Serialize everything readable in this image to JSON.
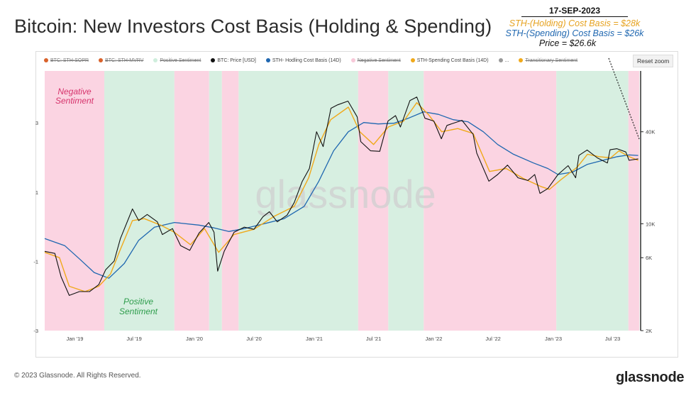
{
  "title": "Bitcoin: New Investors Cost Basis (Holding & Spending)",
  "annotation": {
    "date": "17-SEP-2023",
    "holding": "STH-(Holding) Cost Basis = $28k",
    "spending": "STH-(Spending) Cost Basis = $26k",
    "price": "Price = $26.6k"
  },
  "legend": [
    {
      "label": "BTC: STH-SOPR",
      "color": "#d9622b",
      "struck": true
    },
    {
      "label": "BTC: STH-MVRV",
      "color": "#d9622b",
      "struck": true
    },
    {
      "label": "Positive Sentiment",
      "color": "#cfeedd",
      "struck": true
    },
    {
      "label": "BTC: Price [USD]",
      "color": "#111111",
      "struck": false
    },
    {
      "label": "STH- Hodling Cost Basis (14D)",
      "color": "#1f67b0",
      "struck": false
    },
    {
      "label": "Negative Sentiment",
      "color": "#f7c9d9",
      "struck": true
    },
    {
      "label": "STH-Spending Cost Basis (14D)",
      "color": "#f0a91a",
      "struck": false
    },
    {
      "label": "...",
      "color": "#999999",
      "struck": false
    },
    {
      "label": "Transitionary Sentiment",
      "color": "#f0a91a",
      "struck": true
    }
  ],
  "reset_zoom": "Reset zoom",
  "zone_labels": {
    "negative": [
      "Negative",
      "Sentiment"
    ],
    "positive": [
      "Positive",
      "Sentiment"
    ]
  },
  "watermark": "glassnode",
  "footer": "© 2023 Glassnode. All Rights Reserved.",
  "brand": "glassnode",
  "colors": {
    "negative_zone": "#fbd4e2",
    "positive_zone": "#d7efe1",
    "price": "#111111",
    "holding": "#1f67b0",
    "spending": "#f0a91a",
    "transition": "#e0562c"
  },
  "chart_data": {
    "type": "line",
    "x_axis": {
      "ticks": [
        "Jan '19",
        "Jul '19",
        "Jan '20",
        "Jul '20",
        "Jan '21",
        "Jul '21",
        "Jan '22",
        "Jul '22",
        "Jan '23",
        "Jul '23"
      ],
      "tick_dates": [
        "2019-01-01",
        "2019-07-01",
        "2020-01-01",
        "2020-07-01",
        "2021-01-01",
        "2021-07-01",
        "2022-01-01",
        "2022-07-01",
        "2023-01-01",
        "2023-07-01"
      ],
      "range": [
        "2018-10-01",
        "2023-09-20"
      ]
    },
    "y_left": {
      "ticks": [
        "3",
        "1",
        "-1",
        "-3"
      ],
      "tick_values": [
        3,
        1,
        -1,
        -3
      ],
      "range": [
        -3,
        4.5
      ]
    },
    "y_right": {
      "scale": "log",
      "ticks": [
        "40K",
        "10K",
        "6K",
        "2K"
      ],
      "tick_values": [
        40000,
        10000,
        6000,
        2000
      ],
      "range": [
        2000,
        100000
      ]
    },
    "zones": [
      {
        "sentiment": "negative",
        "start": "2018-10-01",
        "end": "2019-04-01"
      },
      {
        "sentiment": "positive",
        "start": "2019-04-01",
        "end": "2019-11-01"
      },
      {
        "sentiment": "negative",
        "start": "2019-11-01",
        "end": "2020-02-15"
      },
      {
        "sentiment": "positive",
        "start": "2020-02-15",
        "end": "2020-03-25"
      },
      {
        "sentiment": "negative",
        "start": "2020-03-25",
        "end": "2020-05-15"
      },
      {
        "sentiment": "positive",
        "start": "2020-05-15",
        "end": "2021-05-15"
      },
      {
        "sentiment": "negative",
        "start": "2021-05-15",
        "end": "2021-08-15"
      },
      {
        "sentiment": "positive",
        "start": "2021-08-15",
        "end": "2021-12-01"
      },
      {
        "sentiment": "negative",
        "start": "2021-12-01",
        "end": "2023-01-10"
      },
      {
        "sentiment": "positive",
        "start": "2023-01-10",
        "end": "2023-08-18"
      },
      {
        "sentiment": "negative",
        "start": "2023-08-18",
        "end": "2023-09-20"
      }
    ],
    "series": [
      {
        "name": "BTC: Price [USD]",
        "x": [
          "2018-10-01",
          "2018-11-01",
          "2018-11-20",
          "2018-12-15",
          "2019-01-15",
          "2019-02-15",
          "2019-03-15",
          "2019-04-05",
          "2019-05-01",
          "2019-05-20",
          "2019-06-26",
          "2019-07-15",
          "2019-08-10",
          "2019-09-10",
          "2019-09-25",
          "2019-10-26",
          "2019-11-20",
          "2019-12-18",
          "2020-01-15",
          "2020-02-14",
          "2020-03-01",
          "2020-03-12",
          "2020-04-01",
          "2020-05-01",
          "2020-06-01",
          "2020-07-01",
          "2020-07-28",
          "2020-08-17",
          "2020-09-10",
          "2020-10-10",
          "2020-11-01",
          "2020-11-25",
          "2020-12-17",
          "2021-01-08",
          "2021-01-28",
          "2021-02-21",
          "2021-03-13",
          "2021-04-14",
          "2021-05-12",
          "2021-05-23",
          "2021-06-22",
          "2021-07-20",
          "2021-08-14",
          "2021-09-06",
          "2021-09-21",
          "2021-10-20",
          "2021-11-10",
          "2021-12-05",
          "2022-01-01",
          "2022-01-24",
          "2022-02-10",
          "2022-03-28",
          "2022-05-01",
          "2022-05-12",
          "2022-06-18",
          "2022-07-15",
          "2022-08-14",
          "2022-09-15",
          "2022-10-15",
          "2022-11-05",
          "2022-11-21",
          "2022-12-15",
          "2023-01-15",
          "2023-02-15",
          "2023-03-10",
          "2023-03-20",
          "2023-04-14",
          "2023-05-15",
          "2023-06-15",
          "2023-06-23",
          "2023-07-14",
          "2023-08-10",
          "2023-08-20",
          "2023-09-17"
        ],
        "values": [
          6600,
          6400,
          4500,
          3400,
          3600,
          3600,
          4000,
          5000,
          5700,
          8000,
          12500,
          10500,
          11500,
          10300,
          8500,
          9300,
          7200,
          6700,
          8700,
          10200,
          8800,
          4900,
          6600,
          8800,
          9500,
          9200,
          11100,
          12000,
          10300,
          11400,
          13800,
          18900,
          23000,
          40000,
          32000,
          57000,
          60000,
          63500,
          50000,
          34500,
          30000,
          29800,
          47000,
          51000,
          43000,
          64000,
          67500,
          49000,
          47000,
          36000,
          44000,
          47500,
          38500,
          29000,
          19000,
          21000,
          24200,
          20000,
          19200,
          21000,
          15800,
          17000,
          21000,
          24000,
          20000,
          28000,
          30400,
          27000,
          25000,
          30500,
          31000,
          29500,
          26000,
          26600
        ]
      },
      {
        "name": "STH- Hodling Cost Basis (14D)",
        "x": [
          "2018-10-01",
          "2018-12-01",
          "2019-01-15",
          "2019-03-01",
          "2019-04-15",
          "2019-06-01",
          "2019-07-15",
          "2019-09-01",
          "2019-11-01",
          "2020-01-15",
          "2020-03-01",
          "2020-04-15",
          "2020-06-01",
          "2020-08-01",
          "2020-10-01",
          "2020-12-01",
          "2021-01-15",
          "2021-03-01",
          "2021-04-15",
          "2021-06-01",
          "2021-07-15",
          "2021-09-01",
          "2021-10-15",
          "2021-12-01",
          "2022-01-15",
          "2022-03-01",
          "2022-04-15",
          "2022-06-01",
          "2022-07-15",
          "2022-09-01",
          "2022-11-01",
          "2022-12-15",
          "2023-01-15",
          "2023-03-01",
          "2023-04-15",
          "2023-06-01",
          "2023-07-15",
          "2023-08-20",
          "2023-09-17"
        ],
        "values": [
          8000,
          7200,
          5900,
          4800,
          4400,
          5500,
          7800,
          9500,
          10200,
          9800,
          9400,
          8900,
          9300,
          10000,
          10800,
          13000,
          19000,
          30000,
          40000,
          46000,
          45000,
          45500,
          49000,
          54000,
          52000,
          48000,
          46500,
          40000,
          33000,
          28500,
          25000,
          23000,
          21000,
          21800,
          24500,
          26000,
          27500,
          28200,
          28000
        ]
      },
      {
        "name": "STH-Spending Cost Basis (14D)",
        "x": [
          "2018-10-01",
          "2018-11-15",
          "2018-12-15",
          "2019-02-01",
          "2019-03-15",
          "2019-04-20",
          "2019-05-20",
          "2019-06-26",
          "2019-08-01",
          "2019-09-20",
          "2019-11-01",
          "2019-12-20",
          "2020-02-01",
          "2020-03-15",
          "2020-05-01",
          "2020-07-01",
          "2020-09-01",
          "2020-11-01",
          "2020-12-15",
          "2021-01-15",
          "2021-02-20",
          "2021-04-15",
          "2021-05-20",
          "2021-07-01",
          "2021-08-15",
          "2021-10-01",
          "2021-11-10",
          "2021-12-15",
          "2022-01-25",
          "2022-03-15",
          "2022-05-01",
          "2022-06-20",
          "2022-08-10",
          "2022-10-01",
          "2022-11-25",
          "2022-12-20",
          "2023-01-25",
          "2023-03-15",
          "2023-04-15",
          "2023-05-20",
          "2023-06-25",
          "2023-07-20",
          "2023-08-20",
          "2023-09-17"
        ],
        "values": [
          6500,
          6000,
          3900,
          3600,
          3900,
          4700,
          6800,
          10500,
          10800,
          9800,
          8800,
          7300,
          9300,
          6500,
          8500,
          9200,
          11200,
          13000,
          20000,
          33000,
          48000,
          58000,
          40000,
          33000,
          43000,
          47000,
          62000,
          52000,
          40000,
          42000,
          39000,
          22000,
          23000,
          19800,
          17500,
          16800,
          19500,
          23500,
          28500,
          27500,
          27000,
          30000,
          27500,
          26000
        ]
      }
    ]
  }
}
